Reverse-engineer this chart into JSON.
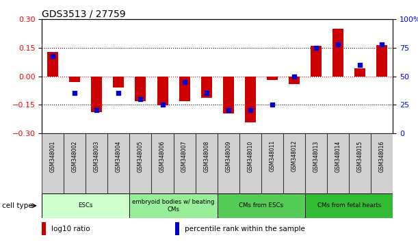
{
  "title": "GDS3513 / 27759",
  "samples": [
    "GSM348001",
    "GSM348002",
    "GSM348003",
    "GSM348004",
    "GSM348005",
    "GSM348006",
    "GSM348007",
    "GSM348008",
    "GSM348009",
    "GSM348010",
    "GSM348011",
    "GSM348012",
    "GSM348013",
    "GSM348014",
    "GSM348015",
    "GSM348016"
  ],
  "log10_ratio": [
    0.128,
    -0.03,
    -0.19,
    -0.06,
    -0.13,
    -0.155,
    -0.13,
    -0.115,
    -0.195,
    -0.245,
    -0.02,
    -0.04,
    0.16,
    0.25,
    0.04,
    0.165
  ],
  "percentile_rank": [
    68,
    35,
    20,
    35,
    30,
    25,
    45,
    35,
    20,
    20,
    25,
    50,
    75,
    78,
    60,
    78
  ],
  "bar_color": "#cc0000",
  "dot_color": "#0000cc",
  "ylim": [
    -0.3,
    0.3
  ],
  "y2lim": [
    0,
    100
  ],
  "yticks": [
    -0.3,
    -0.15,
    0,
    0.15,
    0.3
  ],
  "y2ticks": [
    0,
    25,
    50,
    75,
    100
  ],
  "cell_type_groups": [
    {
      "label": "ESCs",
      "start": 0,
      "end": 3,
      "color": "#ccffcc"
    },
    {
      "label": "embryoid bodies w/ beating\nCMs",
      "start": 4,
      "end": 7,
      "color": "#99ee99"
    },
    {
      "label": "CMs from ESCs",
      "start": 8,
      "end": 11,
      "color": "#55cc55"
    },
    {
      "label": "CMs from fetal hearts",
      "start": 12,
      "end": 15,
      "color": "#33bb33"
    }
  ],
  "legend_items": [
    {
      "label": "log10 ratio",
      "color": "#cc0000"
    },
    {
      "label": "percentile rank within the sample",
      "color": "#0000cc"
    }
  ],
  "bar_width": 0.5,
  "dot_size": 25,
  "background_color": "#ffffff",
  "dotted_line_color": "#000000",
  "zero_line_color": "#cc0000",
  "tick_gray": "#cccccc"
}
